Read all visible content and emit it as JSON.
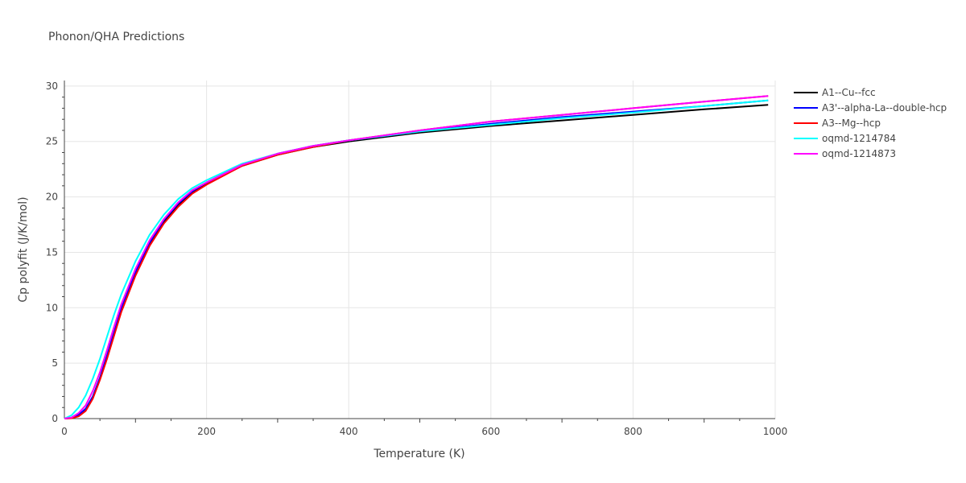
{
  "chart_data": {
    "type": "line",
    "title": "Phonon/QHA Predictions",
    "xlabel": "Temperature (K)",
    "ylabel": "Cp polyfit (J/K/mol)",
    "xlim": [
      0,
      1000
    ],
    "ylim": [
      0,
      30.5
    ],
    "xticks": [
      0,
      200,
      400,
      600,
      800,
      1000
    ],
    "yticks": [
      0,
      5,
      10,
      15,
      20,
      25,
      30
    ],
    "grid": true,
    "legend": "right",
    "x": [
      0,
      10,
      20,
      30,
      40,
      50,
      60,
      70,
      80,
      100,
      120,
      140,
      160,
      180,
      200,
      250,
      300,
      350,
      400,
      500,
      600,
      700,
      800,
      900,
      990
    ],
    "series": [
      {
        "name": "A1--Cu--fcc",
        "color": "#000000",
        "values": [
          0,
          0.05,
          0.3,
          0.8,
          1.9,
          3.6,
          5.6,
          7.7,
          9.8,
          13.1,
          15.8,
          17.8,
          19.3,
          20.4,
          21.2,
          22.8,
          23.8,
          24.5,
          25.0,
          25.8,
          26.4,
          26.9,
          27.4,
          27.9,
          28.3
        ]
      },
      {
        "name": "A3'--alpha-La--double-hcp",
        "color": "#0000ff",
        "values": [
          0,
          0.06,
          0.35,
          0.9,
          2.0,
          3.7,
          5.7,
          7.8,
          9.9,
          13.2,
          15.9,
          17.9,
          19.4,
          20.5,
          21.3,
          22.9,
          23.9,
          24.6,
          25.1,
          25.9,
          26.6,
          27.2,
          27.7,
          28.2,
          28.7
        ]
      },
      {
        "name": "A3--Mg--hcp",
        "color": "#ff0000",
        "values": [
          0,
          0.03,
          0.2,
          0.7,
          1.8,
          3.5,
          5.4,
          7.5,
          9.6,
          12.9,
          15.6,
          17.6,
          19.1,
          20.3,
          21.1,
          22.8,
          23.8,
          24.5,
          25.1,
          26.0,
          26.8,
          27.4,
          28.0,
          28.6,
          29.1
        ]
      },
      {
        "name": "oqmd-1214784",
        "color": "#00ffff",
        "values": [
          0,
          0.3,
          1.0,
          2.1,
          3.6,
          5.4,
          7.4,
          9.4,
          11.2,
          14.2,
          16.6,
          18.4,
          19.8,
          20.8,
          21.5,
          23.0,
          23.9,
          24.6,
          25.1,
          25.9,
          26.5,
          27.1,
          27.6,
          28.2,
          28.7
        ]
      },
      {
        "name": "oqmd-1214873",
        "color": "#ff00ff",
        "values": [
          0,
          0.1,
          0.5,
          1.2,
          2.5,
          4.2,
          6.2,
          8.3,
          10.3,
          13.5,
          16.1,
          18.0,
          19.5,
          20.6,
          21.3,
          22.9,
          23.9,
          24.6,
          25.1,
          26.0,
          26.8,
          27.4,
          28.0,
          28.6,
          29.1
        ]
      }
    ]
  }
}
